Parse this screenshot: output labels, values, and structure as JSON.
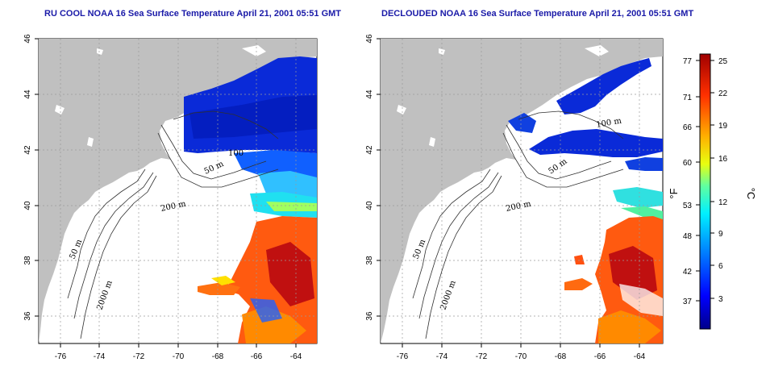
{
  "titles": {
    "left": "RU COOL NOAA 16 Sea Surface Temperature April 21, 2001 05:51 GMT",
    "right": "DECLOUDED NOAA 16 Sea Surface Temperature April 21, 2001 05:51 GMT"
  },
  "axes": {
    "lon_ticks": [
      "-76",
      "-74",
      "-72",
      "-70",
      "-68",
      "-66",
      "-64"
    ],
    "lat_ticks": [
      "46",
      "44",
      "42",
      "40",
      "38",
      "36"
    ]
  },
  "contour_labels": {
    "left": [
      "50 m",
      "200 m",
      "50 m",
      "2000 m",
      "100"
    ],
    "right": [
      "100 m",
      "50 m",
      "200 m",
      "50 m",
      "2000 m"
    ]
  },
  "colorbar": {
    "fahrenheit_ticks": [
      "77",
      "71",
      "66",
      "60",
      "53",
      "48",
      "42",
      "37"
    ],
    "celsius_ticks": [
      "25",
      "22",
      "19",
      "16",
      "12",
      "9",
      "6",
      "3"
    ],
    "fahrenheit_unit": "°F",
    "celsius_unit": "°C",
    "colors": [
      "#00008f",
      "#0010ff",
      "#0080ff",
      "#00e0ff",
      "#40ff c0",
      "#ffff00",
      "#ff9000",
      "#ff2000",
      "#a00000"
    ]
  },
  "colors": {
    "land": "#c0c0c0",
    "title": "#1a1aa8",
    "grid": "#9a9a9a"
  }
}
